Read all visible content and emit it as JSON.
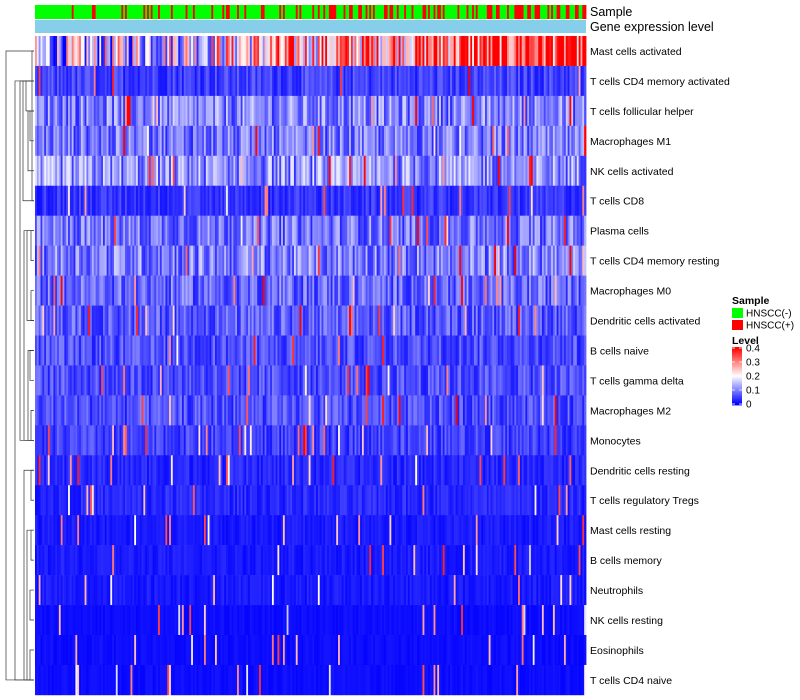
{
  "chart_data": {
    "type": "heatmap",
    "title": "",
    "annotations": [
      {
        "name": "Sample",
        "kind": "categorical"
      },
      {
        "name": "Gene expression level",
        "kind": "continuous"
      }
    ],
    "rows": [
      "Mast cells activated",
      "T cells CD4 memory activated",
      "T cells follicular helper",
      "Macrophages M1",
      "NK cells activated",
      "T cells CD8",
      "Plasma cells",
      "T cells CD4 memory resting",
      "Macrophages M0",
      "Dendritic cells activated",
      "B cells naive",
      "T cells gamma delta",
      "Macrophages M2",
      "Monocytes",
      "Dendritic cells resting",
      "T cells regulatory  Tregs",
      "Mast cells resting",
      "B cells memory",
      "Neutrophils",
      "NK cells resting",
      "Eosinophils",
      "T cells CD4 naive"
    ],
    "row_mean_level": [
      0.33,
      0.05,
      0.1,
      0.09,
      0.11,
      0.04,
      0.09,
      0.1,
      0.08,
      0.07,
      0.06,
      0.06,
      0.06,
      0.05,
      0.03,
      0.03,
      0.02,
      0.02,
      0.02,
      0.01,
      0.01,
      0.01
    ],
    "sample_legend": {
      "title": "Sample",
      "items": [
        {
          "label": "HNSCC(-)",
          "color": "#00ff00"
        },
        {
          "label": "HNSCC(+)",
          "color": "#ff0000"
        }
      ]
    },
    "level_legend": {
      "title": "Level",
      "ticks": [
        "0.4",
        "0.3",
        "0.2",
        "0.1",
        "0"
      ],
      "tick_values": [
        0.4,
        0.3,
        0.2,
        0.1,
        0
      ],
      "range": [
        0,
        0.4
      ],
      "colors": {
        "low": "#0000ff",
        "mid": "#ffffff",
        "high": "#ff0000"
      }
    },
    "annotation_bar_color": "#87ceeb",
    "legend_position": "right",
    "dendrogram": "rows"
  }
}
